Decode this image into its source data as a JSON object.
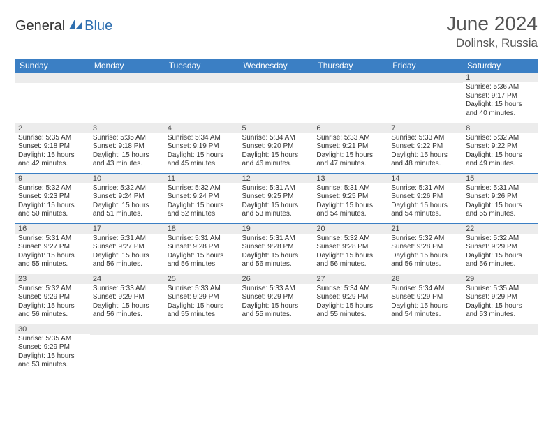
{
  "logo": {
    "text1": "General",
    "text2": "Blue"
  },
  "header": {
    "month": "June 2024",
    "location": "Dolinsk, Russia"
  },
  "style": {
    "header_bg": "#3b7fc4",
    "header_fg": "#ffffff",
    "daynum_bg": "#ececec",
    "border_color": "#3b7fc4",
    "body_bg": "#ffffff",
    "text_color": "#333333",
    "title_color": "#555555"
  },
  "weekdays": [
    "Sunday",
    "Monday",
    "Tuesday",
    "Wednesday",
    "Thursday",
    "Friday",
    "Saturday"
  ],
  "weeks": [
    [
      {},
      {},
      {},
      {},
      {},
      {},
      {
        "n": "1",
        "sr": "Sunrise: 5:36 AM",
        "ss": "Sunset: 9:17 PM",
        "dl": "Daylight: 15 hours and 40 minutes."
      }
    ],
    [
      {
        "n": "2",
        "sr": "Sunrise: 5:35 AM",
        "ss": "Sunset: 9:18 PM",
        "dl": "Daylight: 15 hours and 42 minutes."
      },
      {
        "n": "3",
        "sr": "Sunrise: 5:35 AM",
        "ss": "Sunset: 9:18 PM",
        "dl": "Daylight: 15 hours and 43 minutes."
      },
      {
        "n": "4",
        "sr": "Sunrise: 5:34 AM",
        "ss": "Sunset: 9:19 PM",
        "dl": "Daylight: 15 hours and 45 minutes."
      },
      {
        "n": "5",
        "sr": "Sunrise: 5:34 AM",
        "ss": "Sunset: 9:20 PM",
        "dl": "Daylight: 15 hours and 46 minutes."
      },
      {
        "n": "6",
        "sr": "Sunrise: 5:33 AM",
        "ss": "Sunset: 9:21 PM",
        "dl": "Daylight: 15 hours and 47 minutes."
      },
      {
        "n": "7",
        "sr": "Sunrise: 5:33 AM",
        "ss": "Sunset: 9:22 PM",
        "dl": "Daylight: 15 hours and 48 minutes."
      },
      {
        "n": "8",
        "sr": "Sunrise: 5:32 AM",
        "ss": "Sunset: 9:22 PM",
        "dl": "Daylight: 15 hours and 49 minutes."
      }
    ],
    [
      {
        "n": "9",
        "sr": "Sunrise: 5:32 AM",
        "ss": "Sunset: 9:23 PM",
        "dl": "Daylight: 15 hours and 50 minutes."
      },
      {
        "n": "10",
        "sr": "Sunrise: 5:32 AM",
        "ss": "Sunset: 9:24 PM",
        "dl": "Daylight: 15 hours and 51 minutes."
      },
      {
        "n": "11",
        "sr": "Sunrise: 5:32 AM",
        "ss": "Sunset: 9:24 PM",
        "dl": "Daylight: 15 hours and 52 minutes."
      },
      {
        "n": "12",
        "sr": "Sunrise: 5:31 AM",
        "ss": "Sunset: 9:25 PM",
        "dl": "Daylight: 15 hours and 53 minutes."
      },
      {
        "n": "13",
        "sr": "Sunrise: 5:31 AM",
        "ss": "Sunset: 9:25 PM",
        "dl": "Daylight: 15 hours and 54 minutes."
      },
      {
        "n": "14",
        "sr": "Sunrise: 5:31 AM",
        "ss": "Sunset: 9:26 PM",
        "dl": "Daylight: 15 hours and 54 minutes."
      },
      {
        "n": "15",
        "sr": "Sunrise: 5:31 AM",
        "ss": "Sunset: 9:26 PM",
        "dl": "Daylight: 15 hours and 55 minutes."
      }
    ],
    [
      {
        "n": "16",
        "sr": "Sunrise: 5:31 AM",
        "ss": "Sunset: 9:27 PM",
        "dl": "Daylight: 15 hours and 55 minutes."
      },
      {
        "n": "17",
        "sr": "Sunrise: 5:31 AM",
        "ss": "Sunset: 9:27 PM",
        "dl": "Daylight: 15 hours and 56 minutes."
      },
      {
        "n": "18",
        "sr": "Sunrise: 5:31 AM",
        "ss": "Sunset: 9:28 PM",
        "dl": "Daylight: 15 hours and 56 minutes."
      },
      {
        "n": "19",
        "sr": "Sunrise: 5:31 AM",
        "ss": "Sunset: 9:28 PM",
        "dl": "Daylight: 15 hours and 56 minutes."
      },
      {
        "n": "20",
        "sr": "Sunrise: 5:32 AM",
        "ss": "Sunset: 9:28 PM",
        "dl": "Daylight: 15 hours and 56 minutes."
      },
      {
        "n": "21",
        "sr": "Sunrise: 5:32 AM",
        "ss": "Sunset: 9:28 PM",
        "dl": "Daylight: 15 hours and 56 minutes."
      },
      {
        "n": "22",
        "sr": "Sunrise: 5:32 AM",
        "ss": "Sunset: 9:29 PM",
        "dl": "Daylight: 15 hours and 56 minutes."
      }
    ],
    [
      {
        "n": "23",
        "sr": "Sunrise: 5:32 AM",
        "ss": "Sunset: 9:29 PM",
        "dl": "Daylight: 15 hours and 56 minutes."
      },
      {
        "n": "24",
        "sr": "Sunrise: 5:33 AM",
        "ss": "Sunset: 9:29 PM",
        "dl": "Daylight: 15 hours and 56 minutes."
      },
      {
        "n": "25",
        "sr": "Sunrise: 5:33 AM",
        "ss": "Sunset: 9:29 PM",
        "dl": "Daylight: 15 hours and 55 minutes."
      },
      {
        "n": "26",
        "sr": "Sunrise: 5:33 AM",
        "ss": "Sunset: 9:29 PM",
        "dl": "Daylight: 15 hours and 55 minutes."
      },
      {
        "n": "27",
        "sr": "Sunrise: 5:34 AM",
        "ss": "Sunset: 9:29 PM",
        "dl": "Daylight: 15 hours and 55 minutes."
      },
      {
        "n": "28",
        "sr": "Sunrise: 5:34 AM",
        "ss": "Sunset: 9:29 PM",
        "dl": "Daylight: 15 hours and 54 minutes."
      },
      {
        "n": "29",
        "sr": "Sunrise: 5:35 AM",
        "ss": "Sunset: 9:29 PM",
        "dl": "Daylight: 15 hours and 53 minutes."
      }
    ],
    [
      {
        "n": "30",
        "sr": "Sunrise: 5:35 AM",
        "ss": "Sunset: 9:29 PM",
        "dl": "Daylight: 15 hours and 53 minutes."
      },
      {},
      {},
      {},
      {},
      {},
      {}
    ]
  ]
}
